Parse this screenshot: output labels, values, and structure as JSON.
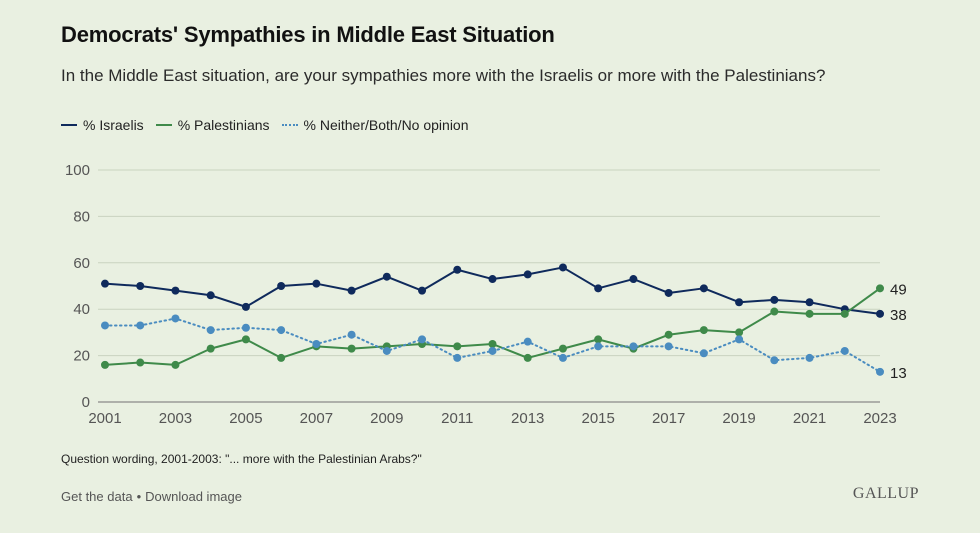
{
  "title": "Democrats' Sympathies in Middle East Situation",
  "subtitle": "In the Middle East situation, are your sympathies more with the Israelis or more with the Palestinians?",
  "footnote": "Question wording, 2001-2003: \"... more with the Palestinian Arabs?\"",
  "footer": {
    "get_data": "Get the data",
    "separator": "•",
    "download": "Download image"
  },
  "logo_text": "GALLUP",
  "colors": {
    "israelis": "#0f2a5c",
    "palestinians": "#3f8a4a",
    "neither": "#4a8cc0",
    "grid": "#c9d3bf",
    "axis": "#555555"
  },
  "chart_data": {
    "type": "line",
    "x": [
      2001,
      2002,
      2003,
      2004,
      2005,
      2006,
      2007,
      2008,
      2009,
      2010,
      2011,
      2012,
      2013,
      2014,
      2015,
      2016,
      2017,
      2018,
      2019,
      2020,
      2021,
      2022,
      2023
    ],
    "xticks": [
      2001,
      2003,
      2005,
      2007,
      2009,
      2011,
      2013,
      2015,
      2017,
      2019,
      2021,
      2023
    ],
    "ylim": [
      0,
      100
    ],
    "yticks": [
      0,
      20,
      40,
      60,
      80,
      100
    ],
    "grid": true,
    "legend_position": "top-left",
    "series": [
      {
        "name": "% Israelis",
        "key": "israelis",
        "style": "solid",
        "values": [
          51,
          50,
          48,
          46,
          41,
          50,
          51,
          48,
          54,
          48,
          57,
          53,
          55,
          58,
          49,
          53,
          47,
          49,
          43,
          44,
          43,
          40,
          38
        ],
        "end_label": "38"
      },
      {
        "name": "% Palestinians",
        "key": "palestinians",
        "style": "solid",
        "values": [
          16,
          17,
          16,
          23,
          27,
          19,
          24,
          23,
          24,
          25,
          24,
          25,
          19,
          23,
          27,
          23,
          29,
          31,
          30,
          39,
          38,
          38,
          49
        ],
        "end_label": "49"
      },
      {
        "name": "% Neither/Both/No opinion",
        "key": "neither",
        "style": "dotted",
        "values": [
          33,
          33,
          36,
          31,
          32,
          31,
          25,
          29,
          22,
          27,
          19,
          22,
          26,
          19,
          24,
          24,
          24,
          21,
          27,
          18,
          19,
          22,
          13
        ],
        "end_label": "13"
      }
    ]
  }
}
